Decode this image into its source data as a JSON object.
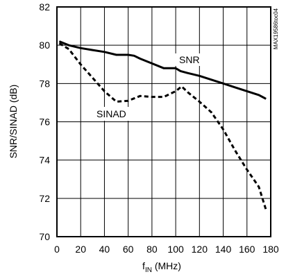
{
  "chart_data": {
    "type": "line",
    "xlabel": "f",
    "xlabel_sub": "IN",
    "xlabel_unit": " (MHz)",
    "ylabel": "SNR/SINAD (dB)",
    "xlim": [
      0,
      180
    ],
    "ylim": [
      70,
      82
    ],
    "x_ticks": [
      "0",
      "20",
      "40",
      "60",
      "80",
      "100",
      "120",
      "140",
      "160",
      "180"
    ],
    "y_ticks": [
      "70",
      "72",
      "74",
      "76",
      "78",
      "80",
      "82"
    ],
    "grid": true,
    "figure_code": "MAX19586toc04",
    "series": [
      {
        "name": "SNR",
        "style": "solid",
        "x": [
          2,
          10,
          20,
          30,
          40,
          50,
          60,
          65,
          70,
          80,
          90,
          100,
          104,
          110,
          120,
          130,
          140,
          150,
          160,
          170,
          176
        ],
        "y": [
          80.2,
          80.0,
          79.85,
          79.75,
          79.65,
          79.5,
          79.5,
          79.45,
          79.3,
          79.05,
          78.8,
          78.8,
          78.65,
          78.55,
          78.4,
          78.2,
          78.0,
          77.8,
          77.6,
          77.4,
          77.2
        ]
      },
      {
        "name": "SINAD",
        "style": "dashed",
        "x": [
          2,
          10,
          20,
          30,
          40,
          50,
          60,
          70,
          80,
          90,
          100,
          105,
          110,
          120,
          130,
          140,
          150,
          160,
          170,
          176
        ],
        "y": [
          80.1,
          79.8,
          79.0,
          78.3,
          77.6,
          77.05,
          77.1,
          77.35,
          77.3,
          77.3,
          77.6,
          77.85,
          77.55,
          77.05,
          76.5,
          75.6,
          74.5,
          73.5,
          72.6,
          71.4
        ]
      }
    ]
  }
}
